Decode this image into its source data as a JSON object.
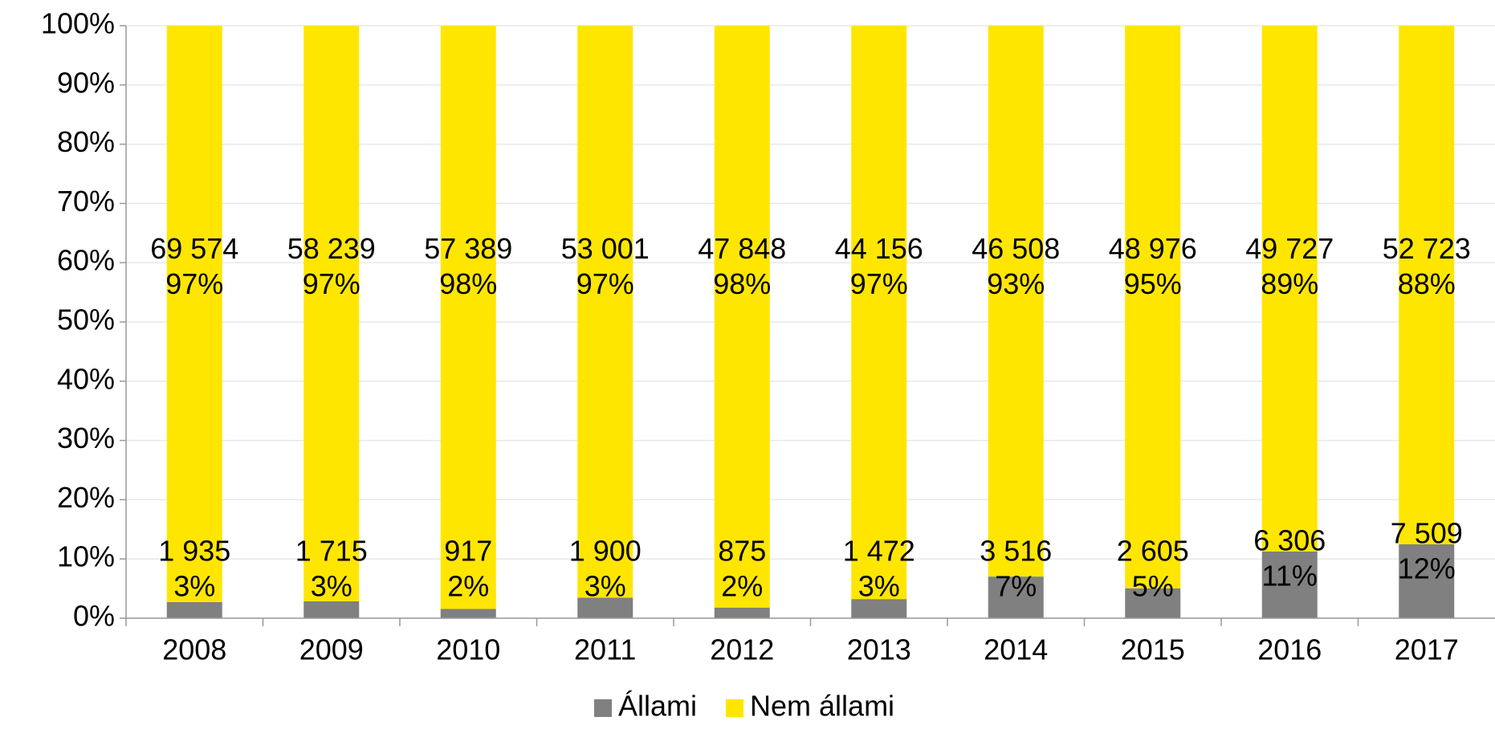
{
  "chart_data": {
    "type": "bar",
    "stacking": "percent",
    "categories": [
      "2008",
      "2009",
      "2010",
      "2011",
      "2012",
      "2013",
      "2014",
      "2015",
      "2016",
      "2017"
    ],
    "series": [
      {
        "name": "Állami",
        "color": "#808080",
        "values": [
          2.71,
          2.86,
          1.57,
          3.46,
          1.8,
          3.23,
          7.03,
          5.05,
          11.25,
          12.47
        ],
        "value_labels": [
          "3%",
          "3%",
          "2%",
          "3%",
          "2%",
          "3%",
          "7%",
          "5%",
          "11%",
          "12%"
        ],
        "count_labels": [
          "1 935",
          "1 715",
          "917",
          "1 900",
          "875",
          "1 472",
          "3 516",
          "2 605",
          "6 306",
          "7 509"
        ]
      },
      {
        "name": "Nem állami",
        "color": "#FFE600",
        "values": [
          97.29,
          97.14,
          98.43,
          96.54,
          98.2,
          96.77,
          92.97,
          94.95,
          88.75,
          87.53
        ],
        "value_labels": [
          "97%",
          "97%",
          "98%",
          "97%",
          "98%",
          "97%",
          "93%",
          "95%",
          "89%",
          "88%"
        ],
        "count_labels": [
          "69 574",
          "58 239",
          "57 389",
          "53 001",
          "47 848",
          "44 156",
          "46 508",
          "48 976",
          "49 727",
          "52 723"
        ]
      }
    ],
    "ylim": [
      0,
      100
    ],
    "yticks": [
      {
        "value": 0,
        "label": "0%"
      },
      {
        "value": 10,
        "label": "10%"
      },
      {
        "value": 20,
        "label": "20%"
      },
      {
        "value": 30,
        "label": "30%"
      },
      {
        "value": 40,
        "label": "40%"
      },
      {
        "value": 50,
        "label": "50%"
      },
      {
        "value": 60,
        "label": "60%"
      },
      {
        "value": 70,
        "label": "70%"
      },
      {
        "value": 80,
        "label": "80%"
      },
      {
        "value": 90,
        "label": "90%"
      },
      {
        "value": 100,
        "label": "100%"
      }
    ],
    "grid": true,
    "legend": "bottom"
  }
}
